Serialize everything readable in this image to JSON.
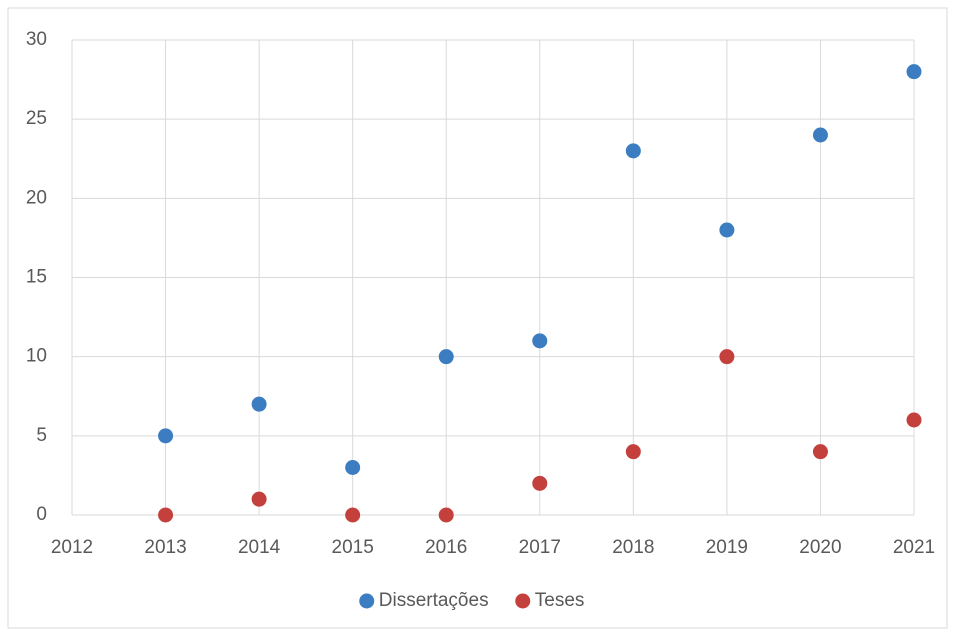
{
  "chart_data": {
    "type": "scatter",
    "xlim": [
      2012,
      2021
    ],
    "xticks": [
      2012,
      2013,
      2014,
      2015,
      2016,
      2017,
      2018,
      2019,
      2020,
      2021
    ],
    "ylim": [
      0,
      30
    ],
    "yticks": [
      0,
      5,
      10,
      15,
      20,
      25,
      30
    ],
    "grid": true,
    "legend": "bottom",
    "series": [
      {
        "name": "Dissertações",
        "color": "#3b7dc0",
        "x": [
          2013,
          2014,
          2015,
          2016,
          2017,
          2018,
          2019,
          2020,
          2021
        ],
        "values": [
          5,
          7,
          3,
          10,
          11,
          23,
          18,
          24,
          28
        ]
      },
      {
        "name": "Teses",
        "color": "#c4403c",
        "x": [
          2013,
          2014,
          2015,
          2016,
          2017,
          2018,
          2019,
          2020,
          2021
        ],
        "values": [
          0,
          1,
          0,
          0,
          2,
          4,
          10,
          4,
          6
        ]
      }
    ]
  }
}
